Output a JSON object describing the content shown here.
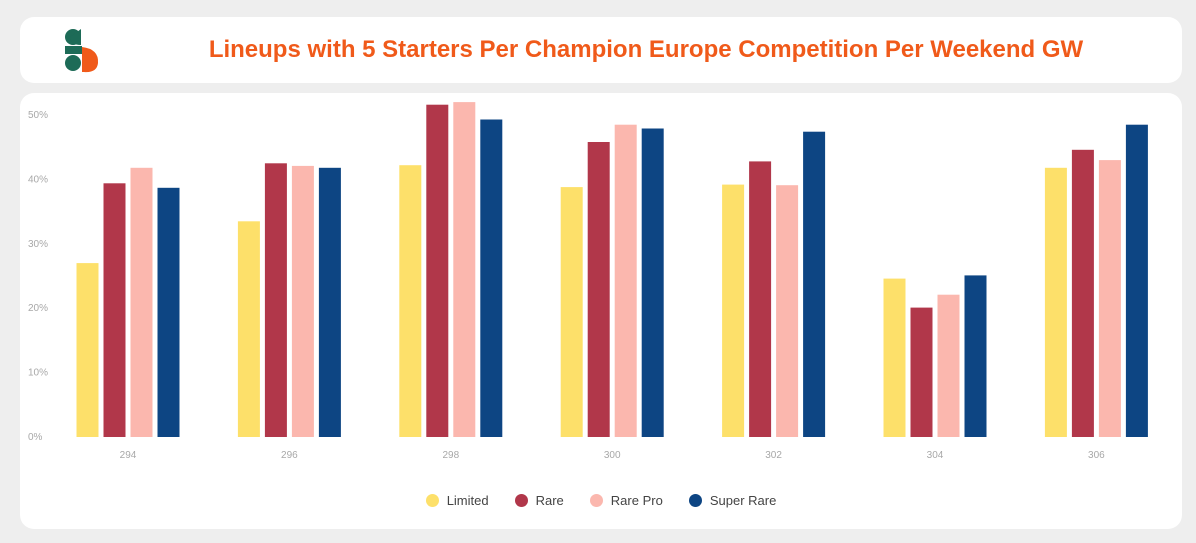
{
  "header": {
    "title": "Lineups with 5 Starters Per Champion Europe Competition Per Weekend GW",
    "title_color": "#f05a1a",
    "logo": "sorare-data-logo"
  },
  "chart_data": {
    "type": "bar",
    "title": "Lineups with 5 Starters Per Champion Europe Competition Per Weekend GW",
    "xlabel": "",
    "ylabel": "",
    "categories": [
      "294",
      "296",
      "298",
      "300",
      "302",
      "304",
      "306"
    ],
    "yticks": [
      "0%",
      "10%",
      "20%",
      "30%",
      "40%",
      "50%"
    ],
    "ylim": [
      0,
      50
    ],
    "grid": false,
    "legend_position": "bottom-center",
    "series": [
      {
        "name": "Limited",
        "color": "#fde06a",
        "values": [
          27.0,
          33.5,
          42.2,
          38.8,
          39.2,
          24.6,
          41.8
        ]
      },
      {
        "name": "Rare",
        "color": "#b1374a",
        "values": [
          39.4,
          42.5,
          51.6,
          45.8,
          42.8,
          20.1,
          44.6
        ]
      },
      {
        "name": "Rare Pro",
        "color": "#fbb7ae",
        "values": [
          41.8,
          42.1,
          52.0,
          48.5,
          39.1,
          22.1,
          43.0
        ]
      },
      {
        "name": "Super Rare",
        "color": "#0d4583",
        "values": [
          38.7,
          41.8,
          49.3,
          47.9,
          47.4,
          25.1,
          48.5
        ]
      }
    ]
  }
}
